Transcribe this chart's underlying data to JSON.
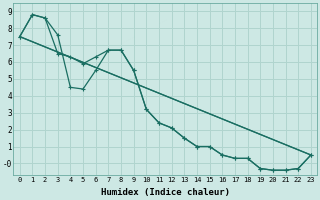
{
  "xlabel": "Humidex (Indice chaleur)",
  "bg_color": "#cde8e4",
  "grid_color": "#b0d4ce",
  "line_color": "#1a6e62",
  "xlim": [
    -0.5,
    23.5
  ],
  "ylim": [
    -0.7,
    9.5
  ],
  "xticks": [
    0,
    1,
    2,
    3,
    4,
    5,
    6,
    7,
    8,
    9,
    10,
    11,
    12,
    13,
    14,
    15,
    16,
    17,
    18,
    19,
    20,
    21,
    22,
    23
  ],
  "yticks": [
    0,
    1,
    2,
    3,
    4,
    5,
    6,
    7,
    8,
    9
  ],
  "ytick_labels": [
    "-0",
    "1",
    "2",
    "3",
    "4",
    "5",
    "6",
    "7",
    "8",
    "9"
  ],
  "line1_x": [
    0,
    1,
    2,
    3,
    4,
    5,
    6,
    7,
    8,
    9,
    10,
    11,
    12,
    13,
    14,
    15,
    16,
    17,
    18,
    19,
    20,
    21,
    22,
    23
  ],
  "line1_y": [
    7.5,
    8.8,
    8.6,
    7.6,
    4.5,
    4.4,
    5.5,
    6.7,
    6.7,
    5.5,
    3.2,
    2.4,
    2.1,
    1.5,
    1.0,
    1.0,
    0.5,
    0.3,
    0.3,
    -0.3,
    -0.4,
    -0.4,
    -0.3,
    0.5
  ],
  "line2_x": [
    0,
    1,
    2,
    3,
    4,
    5,
    6,
    7,
    8,
    9,
    10,
    11,
    12,
    13,
    14,
    15,
    16,
    17,
    18,
    19,
    20,
    21,
    22,
    23
  ],
  "line2_y": [
    7.5,
    8.8,
    8.6,
    6.5,
    6.3,
    5.9,
    6.3,
    6.7,
    6.7,
    5.5,
    3.2,
    2.4,
    2.1,
    1.5,
    1.0,
    1.0,
    0.5,
    0.3,
    0.3,
    -0.3,
    -0.4,
    -0.4,
    -0.3,
    0.5
  ],
  "line3_x": [
    0,
    10,
    23
  ],
  "line3_y": [
    7.5,
    3.2,
    0.5
  ],
  "line4_x": [
    0,
    10,
    23
  ],
  "line4_y": [
    7.5,
    3.2,
    0.5
  ]
}
